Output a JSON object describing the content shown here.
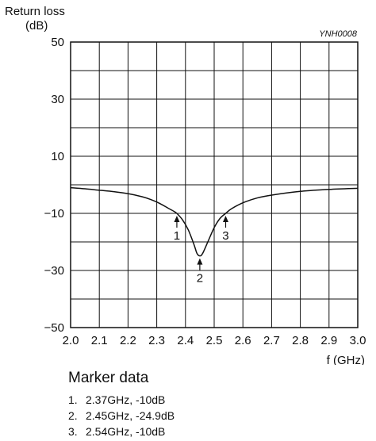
{
  "chart_data": {
    "type": "line",
    "ylabel_line1": "Return loss",
    "ylabel_line2": "(dB)",
    "xlabel": "f (GHz)",
    "figure_code": "YNH0008",
    "xlim": [
      2.0,
      3.0
    ],
    "ylim": [
      -50,
      50
    ],
    "x_ticks": [
      "2.0",
      "2.1",
      "2.2",
      "2.3",
      "2.4",
      "2.5",
      "2.6",
      "2.7",
      "2.8",
      "2.9",
      "3.0"
    ],
    "y_tick_values": [
      50,
      30,
      10,
      -10,
      -30,
      -50
    ],
    "y_tick_labels": [
      "50",
      "30",
      "10",
      "−10",
      "−30",
      "−50"
    ],
    "grid": true,
    "series": [
      {
        "x": [
          2.0,
          2.05,
          2.1,
          2.15,
          2.2,
          2.25,
          2.28,
          2.31,
          2.34,
          2.36,
          2.37,
          2.39,
          2.41,
          2.43,
          2.44,
          2.45,
          2.46,
          2.48,
          2.5,
          2.52,
          2.54,
          2.56,
          2.6,
          2.65,
          2.7,
          2.8,
          2.9,
          3.0
        ],
        "y": [
          -1.0,
          -1.4,
          -1.9,
          -2.4,
          -3.1,
          -4.2,
          -5.2,
          -6.5,
          -8.2,
          -9.3,
          -10.0,
          -12.3,
          -15.8,
          -21.0,
          -24.0,
          -24.9,
          -24.0,
          -19.5,
          -15.0,
          -11.8,
          -10.0,
          -8.4,
          -6.3,
          -4.6,
          -3.6,
          -2.3,
          -1.6,
          -1.2
        ]
      }
    ],
    "markers": [
      {
        "label": "1",
        "x": 2.37,
        "y": -10
      },
      {
        "label": "2",
        "x": 2.45,
        "y": -24.9
      },
      {
        "label": "3",
        "x": 2.54,
        "y": -10
      }
    ]
  },
  "marker_data": {
    "title": "Marker data",
    "items": [
      {
        "num": "1.",
        "text": "2.37GHz, -10dB"
      },
      {
        "num": "2.",
        "text": "2.45GHz, -24.9dB"
      },
      {
        "num": "3.",
        "text": "2.54GHz, -10dB"
      }
    ]
  }
}
